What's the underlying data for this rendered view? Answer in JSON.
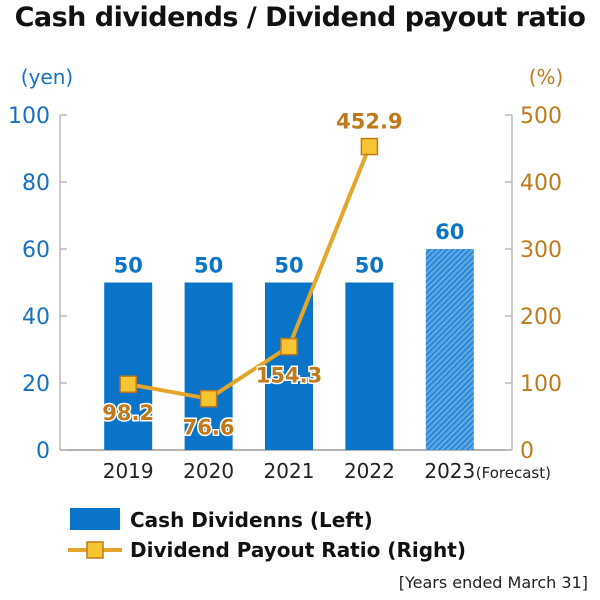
{
  "title": "Cash dividends / Dividend payout ratio",
  "note": "[Years ended March 31]",
  "colors": {
    "bar": "#0a74c9",
    "line": "#e3a52a",
    "left_axis": "#1671c2",
    "right_axis": "#c07a1c",
    "marker_fill": "#f7c531"
  },
  "chart_data": {
    "type": "bar",
    "categories": [
      "2019",
      "2020",
      "2021",
      "2022",
      "2023"
    ],
    "category_suffix": "(Forecast)",
    "forecast_index": 4,
    "left_axis": {
      "unit": "(yen)",
      "ylim": [
        0,
        100
      ],
      "ticks": [
        "0",
        "20",
        "40",
        "60",
        "80",
        "100"
      ]
    },
    "right_axis": {
      "unit": "(%)",
      "ylim": [
        0,
        500
      ],
      "ticks": [
        "0",
        "100",
        "200",
        "300",
        "400",
        "500"
      ]
    },
    "series": [
      {
        "name": "Cash Dividenns (Left)",
        "type": "bar",
        "axis": "left",
        "values": [
          50,
          50,
          50,
          50,
          60
        ],
        "labels": [
          "50",
          "50",
          "50",
          "50",
          "60"
        ]
      },
      {
        "name": "Dividend Payout Ratio (Right)",
        "type": "line",
        "axis": "right",
        "values": [
          98.2,
          76.6,
          154.3,
          452.9,
          null
        ],
        "labels": [
          "98.2",
          "76.6",
          "154.3",
          "452.9",
          ""
        ]
      }
    ],
    "grid": false,
    "legend_position": "bottom-left"
  }
}
